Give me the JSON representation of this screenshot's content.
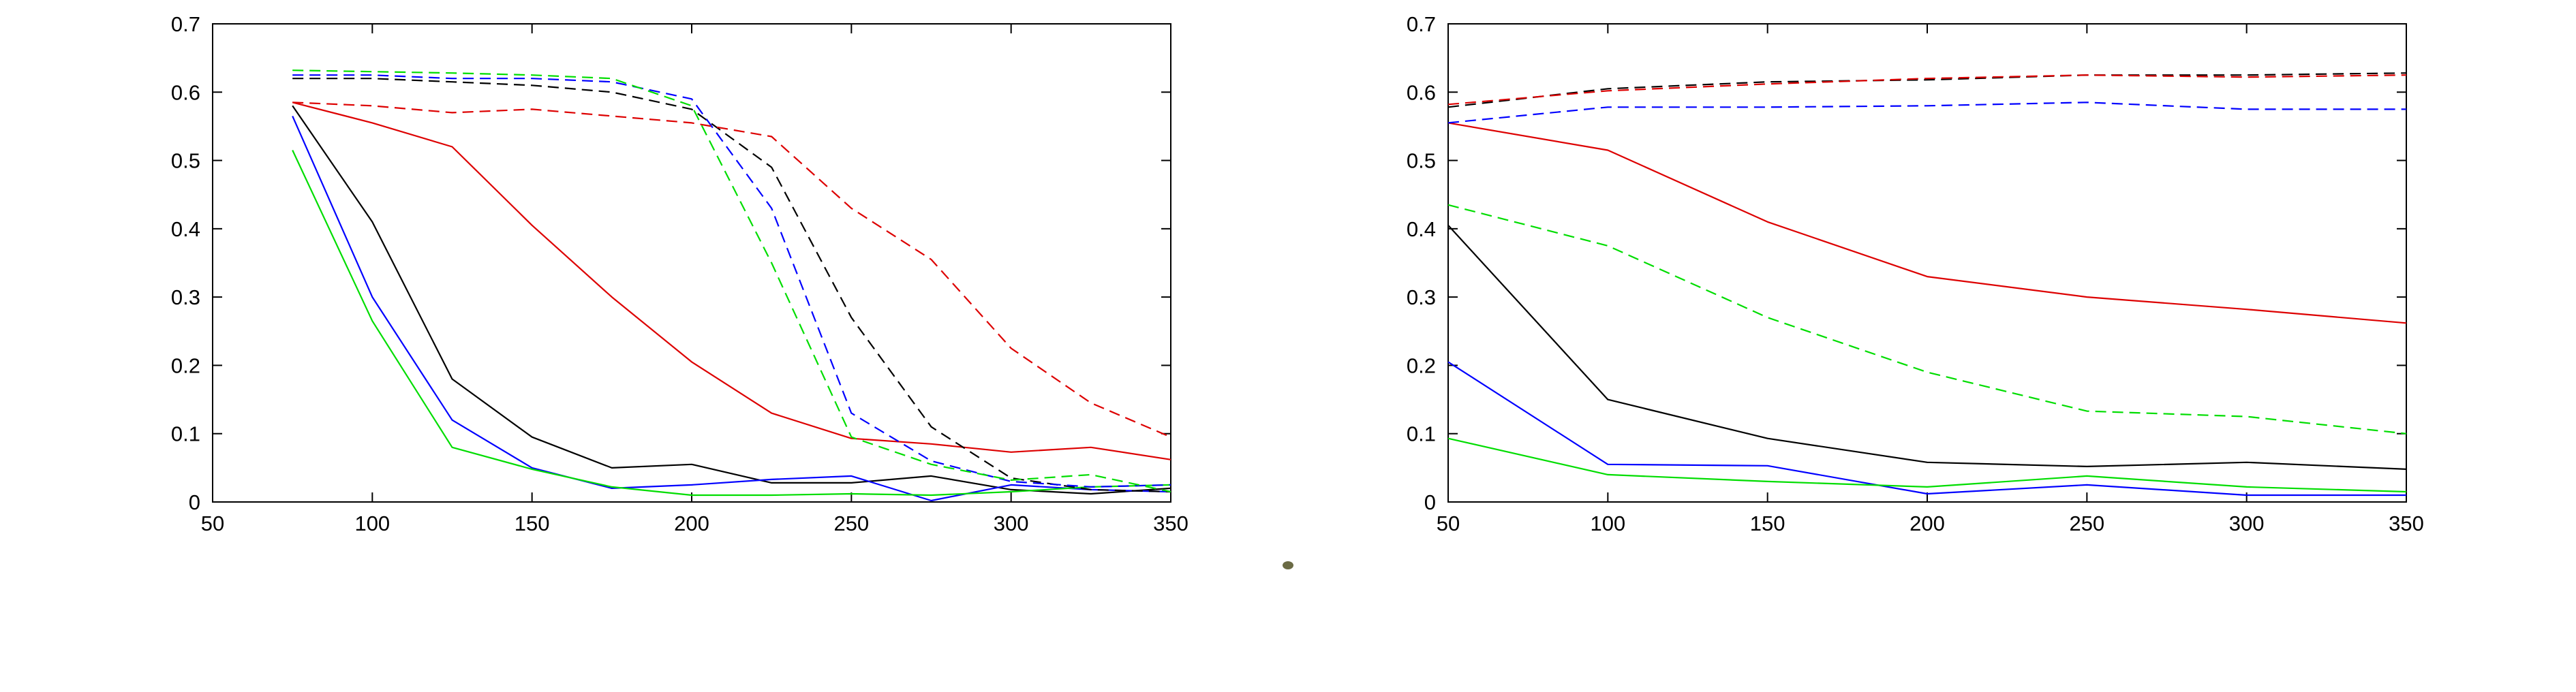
{
  "chart_data": [
    {
      "type": "line",
      "title": "",
      "xlabel": "",
      "ylabel": "",
      "xlim": [
        50,
        350
      ],
      "ylim": [
        0,
        0.7
      ],
      "grid": false,
      "legend": "none",
      "x_ticks": [
        "50",
        "100",
        "150",
        "200",
        "250",
        "300",
        "350"
      ],
      "y_ticks": [
        "0",
        "0.1",
        "0.2",
        "0.3",
        "0.4",
        "0.5",
        "0.6",
        "0.7"
      ],
      "x": [
        75,
        100,
        125,
        150,
        175,
        200,
        225,
        250,
        275,
        300,
        325,
        350
      ],
      "series": [
        {
          "color": "#000000",
          "dash": "solid",
          "values": [
            0.58,
            0.41,
            0.18,
            0.095,
            0.05,
            0.055,
            0.028,
            0.028,
            0.038,
            0.018,
            0.012,
            0.02
          ]
        },
        {
          "color": "#0000ff",
          "dash": "solid",
          "values": [
            0.565,
            0.3,
            0.12,
            0.05,
            0.02,
            0.025,
            0.033,
            0.038,
            0.002,
            0.025,
            0.018,
            0.015
          ]
        },
        {
          "color": "#00dd00",
          "dash": "solid",
          "values": [
            0.515,
            0.265,
            0.08,
            0.048,
            0.022,
            0.01,
            0.01,
            0.012,
            0.01,
            0.015,
            0.022,
            0.025
          ]
        },
        {
          "color": "#dd0000",
          "dash": "solid",
          "values": [
            0.585,
            0.555,
            0.52,
            0.405,
            0.3,
            0.205,
            0.13,
            0.093,
            0.085,
            0.073,
            0.08,
            0.062
          ]
        },
        {
          "color": "#000000",
          "dash": "dashed",
          "values": [
            0.62,
            0.62,
            0.615,
            0.61,
            0.6,
            0.575,
            0.49,
            0.27,
            0.11,
            0.035,
            0.018,
            0.015
          ]
        },
        {
          "color": "#0000ff",
          "dash": "dashed",
          "values": [
            0.625,
            0.625,
            0.62,
            0.62,
            0.615,
            0.59,
            0.43,
            0.13,
            0.06,
            0.03,
            0.022,
            0.025
          ]
        },
        {
          "color": "#00dd00",
          "dash": "dashed",
          "values": [
            0.632,
            0.63,
            0.628,
            0.625,
            0.62,
            0.58,
            0.35,
            0.095,
            0.055,
            0.032,
            0.04,
            0.015
          ]
        },
        {
          "color": "#dd0000",
          "dash": "dashed",
          "values": [
            0.585,
            0.58,
            0.57,
            0.575,
            0.565,
            0.555,
            0.535,
            0.43,
            0.355,
            0.225,
            0.145,
            0.095
          ]
        }
      ]
    },
    {
      "type": "line",
      "title": "",
      "xlabel": "",
      "ylabel": "",
      "xlim": [
        50,
        350
      ],
      "ylim": [
        0,
        0.7
      ],
      "grid": false,
      "legend": "none",
      "x_ticks": [
        "50",
        "100",
        "150",
        "200",
        "250",
        "300",
        "350"
      ],
      "y_ticks": [
        "0",
        "0.1",
        "0.2",
        "0.3",
        "0.4",
        "0.5",
        "0.6",
        "0.7"
      ],
      "x": [
        50,
        100,
        150,
        200,
        250,
        300,
        350
      ],
      "series": [
        {
          "color": "#000000",
          "dash": "solid",
          "values": [
            0.405,
            0.15,
            0.093,
            0.058,
            0.052,
            0.058,
            0.048
          ]
        },
        {
          "color": "#0000ff",
          "dash": "solid",
          "values": [
            0.205,
            0.055,
            0.053,
            0.012,
            0.025,
            0.01,
            0.01
          ]
        },
        {
          "color": "#00dd00",
          "dash": "solid",
          "values": [
            0.093,
            0.04,
            0.03,
            0.022,
            0.038,
            0.022,
            0.015
          ]
        },
        {
          "color": "#dd0000",
          "dash": "solid",
          "values": [
            0.555,
            0.515,
            0.41,
            0.33,
            0.3,
            0.282,
            0.262
          ]
        },
        {
          "color": "#000000",
          "dash": "dashed",
          "values": [
            0.578,
            0.605,
            0.615,
            0.618,
            0.625,
            0.625,
            0.628
          ]
        },
        {
          "color": "#0000ff",
          "dash": "dashed",
          "values": [
            0.555,
            0.578,
            0.578,
            0.58,
            0.585,
            0.575,
            0.575
          ]
        },
        {
          "color": "#00dd00",
          "dash": "dashed",
          "values": [
            0.435,
            0.375,
            0.27,
            0.19,
            0.133,
            0.125,
            0.1
          ]
        },
        {
          "color": "#dd0000",
          "dash": "dashed",
          "values": [
            0.582,
            0.602,
            0.612,
            0.62,
            0.625,
            0.622,
            0.625
          ]
        }
      ]
    }
  ]
}
